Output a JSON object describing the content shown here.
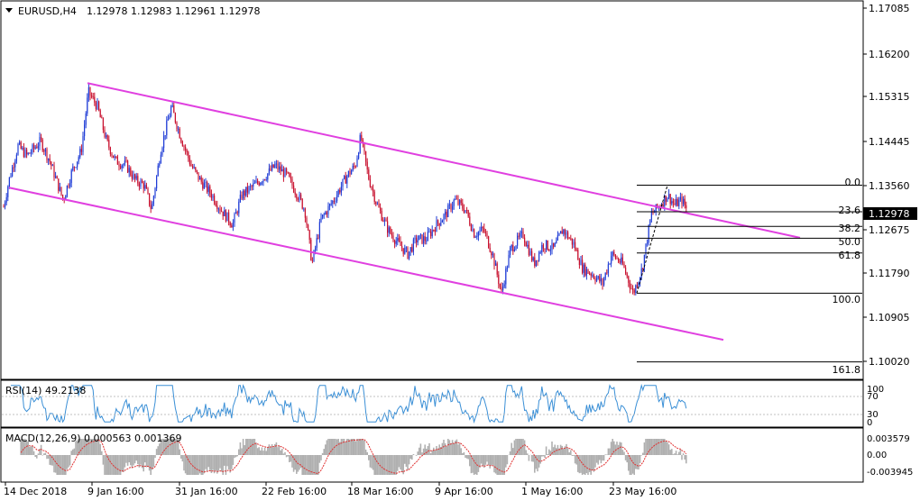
{
  "header": {
    "symbol": "EURUSD,H4",
    "ohlc": "1.12978 1.12983 1.12961 1.12978"
  },
  "price_axis": {
    "labels": [
      "1.17085",
      "1.16200",
      "1.15315",
      "1.14445",
      "1.13560",
      "1.12675",
      "1.11790",
      "1.10905",
      "1.10020"
    ],
    "current": "1.12978"
  },
  "time_axis": {
    "labels": [
      "14 Dec 2018",
      "9 Jan 16:00",
      "31 Jan 16:00",
      "22 Feb 16:00",
      "18 Mar 16:00",
      "9 Apr 16:00",
      "1 May 16:00",
      "23 May 16:00"
    ]
  },
  "fibonacci": {
    "levels": [
      "0.0",
      "23.6",
      "38.2",
      "50.0",
      "61.8",
      "100.0",
      "161.8"
    ]
  },
  "rsi": {
    "label": "RSI(14) 49.2138",
    "scale": [
      "100",
      "70",
      "30",
      "0"
    ]
  },
  "macd": {
    "label": "MACD(12,26,9) 0.000563 0.001369",
    "scale": [
      "0.003579",
      "0.00",
      "-0.003945"
    ]
  },
  "colors": {
    "bull": "#1f3cd6",
    "bear": "#c8102e",
    "channel": "#e040e0",
    "rsi": "#3a8fd6",
    "macd_hist": "#b0b0b0",
    "macd_signal": "#e03030"
  },
  "chart_data": {
    "type": "candlestick",
    "symbol": "EURUSD",
    "timeframe": "H4",
    "ylim": [
      1.096,
      1.172
    ],
    "price_path": [
      [
        0,
        1.127
      ],
      [
        10,
        1.136
      ],
      [
        20,
        1.143
      ],
      [
        30,
        1.141
      ],
      [
        45,
        1.144
      ],
      [
        55,
        1.14
      ],
      [
        70,
        1.132
      ],
      [
        80,
        1.138
      ],
      [
        90,
        1.142
      ],
      [
        98,
        1.154
      ],
      [
        108,
        1.151
      ],
      [
        118,
        1.144
      ],
      [
        128,
        1.14
      ],
      [
        140,
        1.139
      ],
      [
        150,
        1.136
      ],
      [
        160,
        1.135
      ],
      [
        168,
        1.13
      ],
      [
        178,
        1.142
      ],
      [
        190,
        1.151
      ],
      [
        200,
        1.145
      ],
      [
        212,
        1.139
      ],
      [
        222,
        1.136
      ],
      [
        235,
        1.133
      ],
      [
        245,
        1.13
      ],
      [
        258,
        1.127
      ],
      [
        268,
        1.133
      ],
      [
        282,
        1.135
      ],
      [
        295,
        1.137
      ],
      [
        305,
        1.139
      ],
      [
        318,
        1.137
      ],
      [
        330,
        1.133
      ],
      [
        338,
        1.13
      ],
      [
        346,
        1.119
      ],
      [
        356,
        1.128
      ],
      [
        370,
        1.132
      ],
      [
        385,
        1.137
      ],
      [
        394,
        1.139
      ],
      [
        400,
        1.145
      ],
      [
        408,
        1.137
      ],
      [
        418,
        1.131
      ],
      [
        430,
        1.126
      ],
      [
        442,
        1.123
      ],
      [
        452,
        1.121
      ],
      [
        462,
        1.124
      ],
      [
        472,
        1.124
      ],
      [
        484,
        1.127
      ],
      [
        494,
        1.129
      ],
      [
        504,
        1.132
      ],
      [
        516,
        1.13
      ],
      [
        526,
        1.125
      ],
      [
        536,
        1.126
      ],
      [
        546,
        1.121
      ],
      [
        556,
        1.113
      ],
      [
        566,
        1.122
      ],
      [
        580,
        1.125
      ],
      [
        592,
        1.119
      ],
      [
        602,
        1.123
      ],
      [
        614,
        1.122
      ],
      [
        624,
        1.126
      ],
      [
        636,
        1.123
      ],
      [
        646,
        1.118
      ],
      [
        656,
        1.117
      ],
      [
        668,
        1.115
      ],
      [
        678,
        1.121
      ],
      [
        690,
        1.119
      ],
      [
        702,
        1.113
      ],
      [
        712,
        1.118
      ],
      [
        722,
        1.129
      ],
      [
        732,
        1.131
      ],
      [
        740,
        1.133
      ],
      [
        748,
        1.131
      ],
      [
        756,
        1.132
      ],
      [
        762,
        1.1298
      ]
    ],
    "last_price": 1.12978,
    "fib_levels": [
      {
        "label": "0.0",
        "price": 1.135
      },
      {
        "label": "23.6",
        "price": 1.1296
      },
      {
        "label": "38.2",
        "price": 1.1266
      },
      {
        "label": "50.0",
        "price": 1.1242
      },
      {
        "label": "61.8",
        "price": 1.1212
      },
      {
        "label": "100.0",
        "price": 1.113
      },
      {
        "label": "161.8",
        "price": 1.099
      }
    ],
    "channel_upper": [
      [
        1.1558,
        97
      ],
      [
        1.1243,
        887
      ]
    ],
    "channel_lower": [
      [
        1.1345,
        10
      ],
      [
        1.1035,
        802
      ]
    ]
  }
}
